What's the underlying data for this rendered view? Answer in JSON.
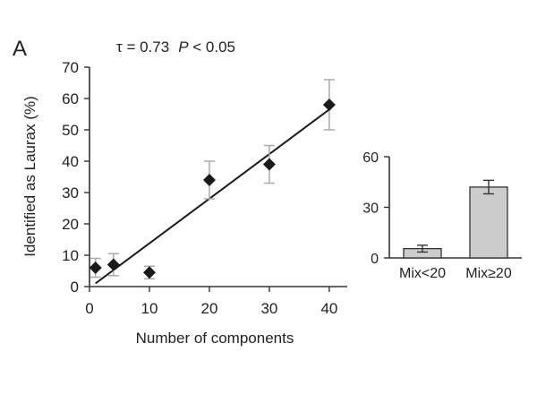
{
  "panel_label": "A",
  "stat_tau": "τ = 0.73",
  "stat_p_italic": "P",
  "stat_p_rest": " < 0.05",
  "chart_data": [
    {
      "type": "scatter",
      "xlabel": "Number of components",
      "ylabel": "Identified as Laurax  (%)",
      "xlim": [
        0,
        43
      ],
      "ylim": [
        0,
        70
      ],
      "xticks": [
        0,
        10,
        20,
        30,
        40
      ],
      "yticks": [
        0,
        10,
        20,
        30,
        40,
        50,
        60,
        70
      ],
      "points": [
        {
          "x": 1,
          "y": 6,
          "err": 3
        },
        {
          "x": 4,
          "y": 7,
          "err": 3.5
        },
        {
          "x": 10,
          "y": 4.5,
          "err": 2
        },
        {
          "x": 20,
          "y": 34,
          "err": 6
        },
        {
          "x": 30,
          "y": 39,
          "err": 6
        },
        {
          "x": 40,
          "y": 58,
          "err": 8
        }
      ],
      "fit_line": {
        "x": [
          1,
          40
        ],
        "y": [
          1,
          56.5
        ]
      },
      "annotation": "τ = 0.73  P < 0.05",
      "grid": false,
      "colors": {
        "points": "#1a1a1a",
        "errorbars": "#aaaaaa",
        "line": "#1a1a1a"
      }
    },
    {
      "type": "bar",
      "categories": [
        "Mix<20",
        "Mix≥20"
      ],
      "values": [
        5.5,
        42
      ],
      "errors": [
        2,
        4
      ],
      "ylim": [
        0,
        60
      ],
      "yticks": [
        0,
        30,
        60
      ],
      "grid": false,
      "colors": {
        "bar": "#cccccc",
        "edge": "#333333",
        "errorbars": "#333333"
      }
    }
  ]
}
